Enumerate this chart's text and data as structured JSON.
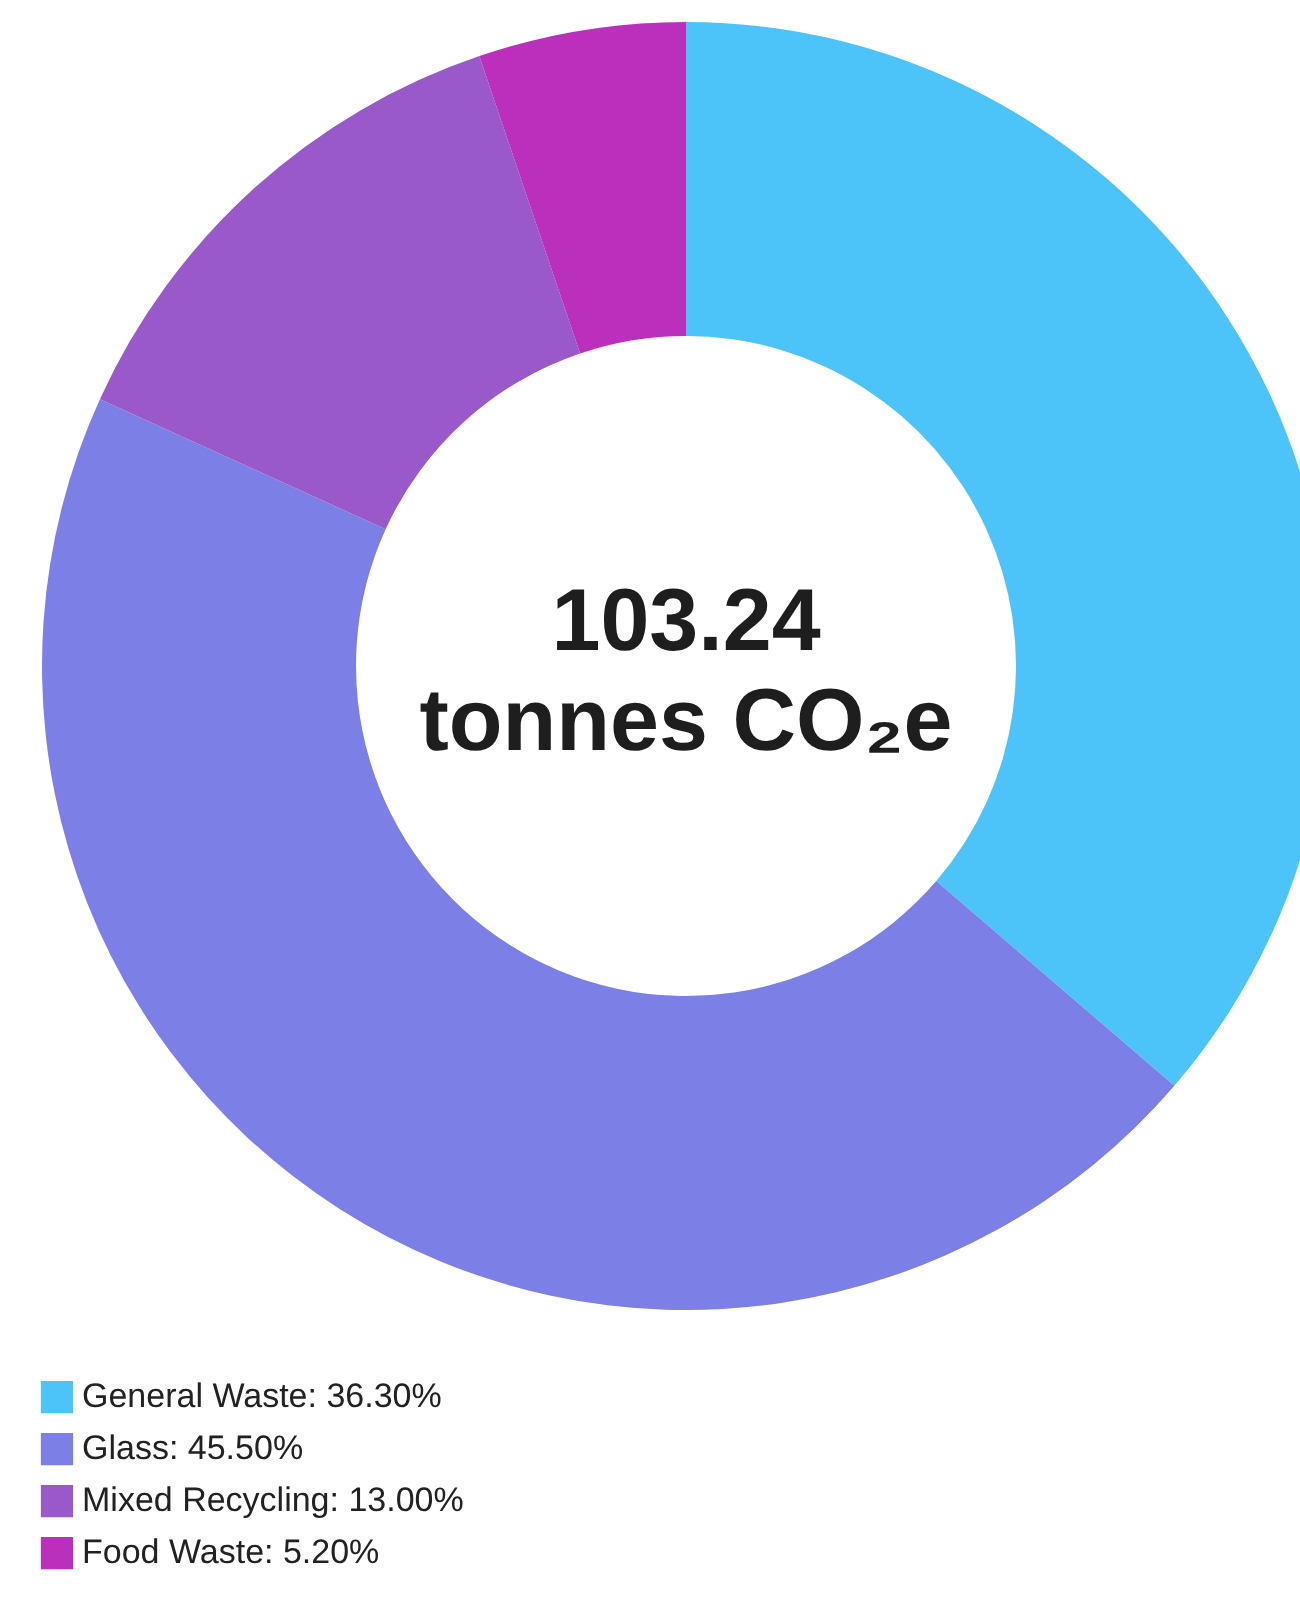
{
  "chart_data": {
    "type": "donut",
    "categories": [
      "General Waste",
      "Glass",
      "Mixed Recycling",
      "Food Waste"
    ],
    "values": [
      36.3,
      45.5,
      13.0,
      5.2
    ],
    "value_labels": [
      "36.30%",
      "45.50%",
      "13.00%",
      "5.20%"
    ],
    "colors": [
      "#4cc3f9",
      "#7b7fe6",
      "#9a59cb",
      "#bb2fbd"
    ],
    "annotations": [
      "103.24",
      "tonnes CO₂e"
    ],
    "legend": "bottom left"
  }
}
